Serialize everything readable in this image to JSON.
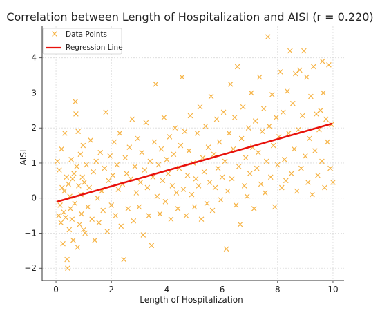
{
  "chart_data": {
    "type": "scatter",
    "title": "Correlation between Length of Hospitalization and AISI (r = 0.220)",
    "xlabel": "Length of Hospitalization",
    "ylabel": "AISI",
    "xlim": [
      -0.5,
      10.4
    ],
    "ylim": [
      -2.35,
      4.9
    ],
    "xticks": [
      0,
      2,
      4,
      6,
      8,
      10
    ],
    "yticks": [
      -2,
      -1,
      0,
      1,
      2,
      3,
      4
    ],
    "grid": true,
    "legend_position": "top-left",
    "colors": {
      "points": "#f5a623",
      "regression": "#e8110b"
    },
    "series": [
      {
        "name": "Data Points",
        "kind": "scatter",
        "points": [
          [
            0.05,
            1.05
          ],
          [
            0.1,
            -0.5
          ],
          [
            0.12,
            0.8
          ],
          [
            0.15,
            -0.2
          ],
          [
            0.18,
            -0.7
          ],
          [
            0.2,
            1.4
          ],
          [
            0.22,
            0.3
          ],
          [
            0.25,
            -1.3
          ],
          [
            0.28,
            -0.4
          ],
          [
            0.3,
            0.2
          ],
          [
            0.32,
            1.85
          ],
          [
            0.35,
            -0.55
          ],
          [
            0.38,
            0.6
          ],
          [
            0.4,
            -1.75
          ],
          [
            0.42,
            -2.0
          ],
          [
            0.45,
            0.4
          ],
          [
            0.48,
            -0.9
          ],
          [
            0.5,
            0.05
          ],
          [
            0.52,
            -0.3
          ],
          [
            0.55,
            1.1
          ],
          [
            0.58,
            -0.6
          ],
          [
            0.6,
            0.55
          ],
          [
            0.62,
            -1.2
          ],
          [
            0.65,
            0.7
          ],
          [
            0.68,
            -0.15
          ],
          [
            0.7,
            2.75
          ],
          [
            0.72,
            2.4
          ],
          [
            0.75,
            0.9
          ],
          [
            0.78,
            -1.4
          ],
          [
            0.8,
            1.9
          ],
          [
            0.82,
            0.35
          ],
          [
            0.85,
            -0.75
          ],
          [
            0.88,
            1.25
          ],
          [
            0.9,
            0.1
          ],
          [
            0.92,
            -0.45
          ],
          [
            0.95,
            0.6
          ],
          [
            0.98,
            1.5
          ],
          [
            1.0,
            -0.9
          ],
          [
            1.02,
            0.45
          ],
          [
            1.05,
            -1.0
          ],
          [
            1.1,
            0.95
          ],
          [
            1.15,
            -0.25
          ],
          [
            1.2,
            0.3
          ],
          [
            1.25,
            1.65
          ],
          [
            1.3,
            -0.6
          ],
          [
            1.35,
            0.75
          ],
          [
            1.4,
            -1.2
          ],
          [
            1.45,
            1.05
          ],
          [
            1.5,
            0.0
          ],
          [
            1.55,
            -0.7
          ],
          [
            1.6,
            1.3
          ],
          [
            1.65,
            0.2
          ],
          [
            1.7,
            -0.35
          ],
          [
            1.75,
            0.85
          ],
          [
            1.8,
            2.45
          ],
          [
            1.85,
            -0.95
          ],
          [
            1.9,
            0.5
          ],
          [
            1.95,
            1.2
          ],
          [
            2.0,
            -0.2
          ],
          [
            2.05,
            0.65
          ],
          [
            2.1,
            1.6
          ],
          [
            2.15,
            -0.5
          ],
          [
            2.2,
            0.95
          ],
          [
            2.25,
            0.25
          ],
          [
            2.3,
            1.85
          ],
          [
            2.35,
            -0.8
          ],
          [
            2.4,
            0.4
          ],
          [
            2.45,
            -1.75
          ],
          [
            2.5,
            1.15
          ],
          [
            2.55,
            0.7
          ],
          [
            2.6,
            -0.3
          ],
          [
            2.65,
            1.45
          ],
          [
            2.7,
            0.55
          ],
          [
            2.75,
            2.25
          ],
          [
            2.8,
            -0.65
          ],
          [
            2.85,
            0.9
          ],
          [
            2.9,
            0.15
          ],
          [
            2.95,
            1.7
          ],
          [
            3.0,
            -0.25
          ],
          [
            3.05,
            0.45
          ],
          [
            3.1,
            1.3
          ],
          [
            3.15,
            -1.05
          ],
          [
            3.2,
            0.8
          ],
          [
            3.25,
            2.15
          ],
          [
            3.3,
            0.3
          ],
          [
            3.35,
            -0.5
          ],
          [
            3.4,
            1.05
          ],
          [
            3.45,
            -1.35
          ],
          [
            3.5,
            0.6
          ],
          [
            3.55,
            1.6
          ],
          [
            3.6,
            3.25
          ],
          [
            3.65,
            0.05
          ],
          [
            3.7,
            0.95
          ],
          [
            3.75,
            -0.45
          ],
          [
            3.8,
            1.4
          ],
          [
            3.85,
            0.5
          ],
          [
            3.9,
            2.3
          ],
          [
            3.95,
            -0.1
          ],
          [
            4.0,
            1.1
          ],
          [
            4.05,
            0.7
          ],
          [
            4.1,
            1.75
          ],
          [
            4.15,
            -0.6
          ],
          [
            4.2,
            0.35
          ],
          [
            4.25,
            1.25
          ],
          [
            4.3,
            2.0
          ],
          [
            4.35,
            0.15
          ],
          [
            4.4,
            -0.3
          ],
          [
            4.45,
            0.85
          ],
          [
            4.5,
            1.5
          ],
          [
            4.55,
            3.45
          ],
          [
            4.6,
            0.25
          ],
          [
            4.65,
            1.9
          ],
          [
            4.7,
            -0.5
          ],
          [
            4.75,
            0.65
          ],
          [
            4.8,
            1.35
          ],
          [
            4.85,
            2.35
          ],
          [
            4.9,
            0.1
          ],
          [
            4.95,
            1.0
          ],
          [
            5.0,
            -0.25
          ],
          [
            5.05,
            0.55
          ],
          [
            5.1,
            1.85
          ],
          [
            5.15,
            0.35
          ],
          [
            5.2,
            2.6
          ],
          [
            5.25,
            -0.6
          ],
          [
            5.3,
            1.15
          ],
          [
            5.35,
            0.75
          ],
          [
            5.4,
            2.05
          ],
          [
            5.45,
            -0.15
          ],
          [
            5.5,
            1.45
          ],
          [
            5.55,
            0.45
          ],
          [
            5.6,
            2.9
          ],
          [
            5.65,
            -0.35
          ],
          [
            5.7,
            1.25
          ],
          [
            5.75,
            0.3
          ],
          [
            5.8,
            2.25
          ],
          [
            5.85,
            0.85
          ],
          [
            5.9,
            1.6
          ],
          [
            5.95,
            -0.05
          ],
          [
            6.0,
            0.6
          ],
          [
            6.05,
            2.45
          ],
          [
            6.1,
            1.05
          ],
          [
            6.15,
            -1.45
          ],
          [
            6.2,
            0.2
          ],
          [
            6.25,
            1.85
          ],
          [
            6.3,
            3.25
          ],
          [
            6.35,
            0.55
          ],
          [
            6.4,
            1.4
          ],
          [
            6.45,
            2.3
          ],
          [
            6.5,
            -0.2
          ],
          [
            6.55,
            3.75
          ],
          [
            6.6,
            0.9
          ],
          [
            6.65,
            -0.75
          ],
          [
            6.7,
            1.7
          ],
          [
            6.75,
            2.6
          ],
          [
            6.8,
            0.35
          ],
          [
            6.85,
            1.15
          ],
          [
            6.9,
            0.05
          ],
          [
            6.95,
            2.0
          ],
          [
            7.0,
            0.7
          ],
          [
            7.05,
            3.0
          ],
          [
            7.1,
            1.45
          ],
          [
            7.15,
            -0.3
          ],
          [
            7.2,
            2.2
          ],
          [
            7.25,
            0.85
          ],
          [
            7.3,
            1.3
          ],
          [
            7.35,
            3.45
          ],
          [
            7.4,
            0.4
          ],
          [
            7.45,
            1.9
          ],
          [
            7.5,
            2.55
          ],
          [
            7.55,
            0.15
          ],
          [
            7.6,
            1.05
          ],
          [
            7.65,
            4.6
          ],
          [
            7.7,
            2.05
          ],
          [
            7.75,
            0.6
          ],
          [
            7.8,
            2.95
          ],
          [
            7.85,
            1.5
          ],
          [
            7.9,
            -0.25
          ],
          [
            7.95,
            2.3
          ],
          [
            8.0,
            0.95
          ],
          [
            8.05,
            1.75
          ],
          [
            8.1,
            3.6
          ],
          [
            8.15,
            0.3
          ],
          [
            8.2,
            2.45
          ],
          [
            8.25,
            1.1
          ],
          [
            8.3,
            0.5
          ],
          [
            8.35,
            3.05
          ],
          [
            8.4,
            1.85
          ],
          [
            8.45,
            4.2
          ],
          [
            8.5,
            0.7
          ],
          [
            8.55,
            2.7
          ],
          [
            8.6,
            1.4
          ],
          [
            8.65,
            3.55
          ],
          [
            8.7,
            0.2
          ],
          [
            8.75,
            1.95
          ],
          [
            8.8,
            3.65
          ],
          [
            8.85,
            0.85
          ],
          [
            8.9,
            2.35
          ],
          [
            8.95,
            4.2
          ],
          [
            9.0,
            1.2
          ],
          [
            9.05,
            3.45
          ],
          [
            9.1,
            0.45
          ],
          [
            9.15,
            1.7
          ],
          [
            9.2,
            2.9
          ],
          [
            9.25,
            0.1
          ],
          [
            9.3,
            3.75
          ],
          [
            9.35,
            1.35
          ],
          [
            9.4,
            2.4
          ],
          [
            9.45,
            0.65
          ],
          [
            9.5,
            1.95
          ],
          [
            9.55,
            2.5
          ],
          [
            9.6,
            1.05
          ],
          [
            9.65,
            3.0
          ],
          [
            9.7,
            0.3
          ],
          [
            9.75,
            2.25
          ],
          [
            9.8,
            1.6
          ],
          [
            9.85,
            3.8
          ],
          [
            9.9,
            0.85
          ],
          [
            9.95,
            2.1
          ],
          [
            10.0,
            0.45
          ],
          [
            9.62,
            3.9
          ]
        ]
      },
      {
        "name": "Regression Line",
        "kind": "line",
        "x": [
          0.05,
          9.95
        ],
        "y": [
          -0.1,
          2.12
        ]
      }
    ]
  }
}
